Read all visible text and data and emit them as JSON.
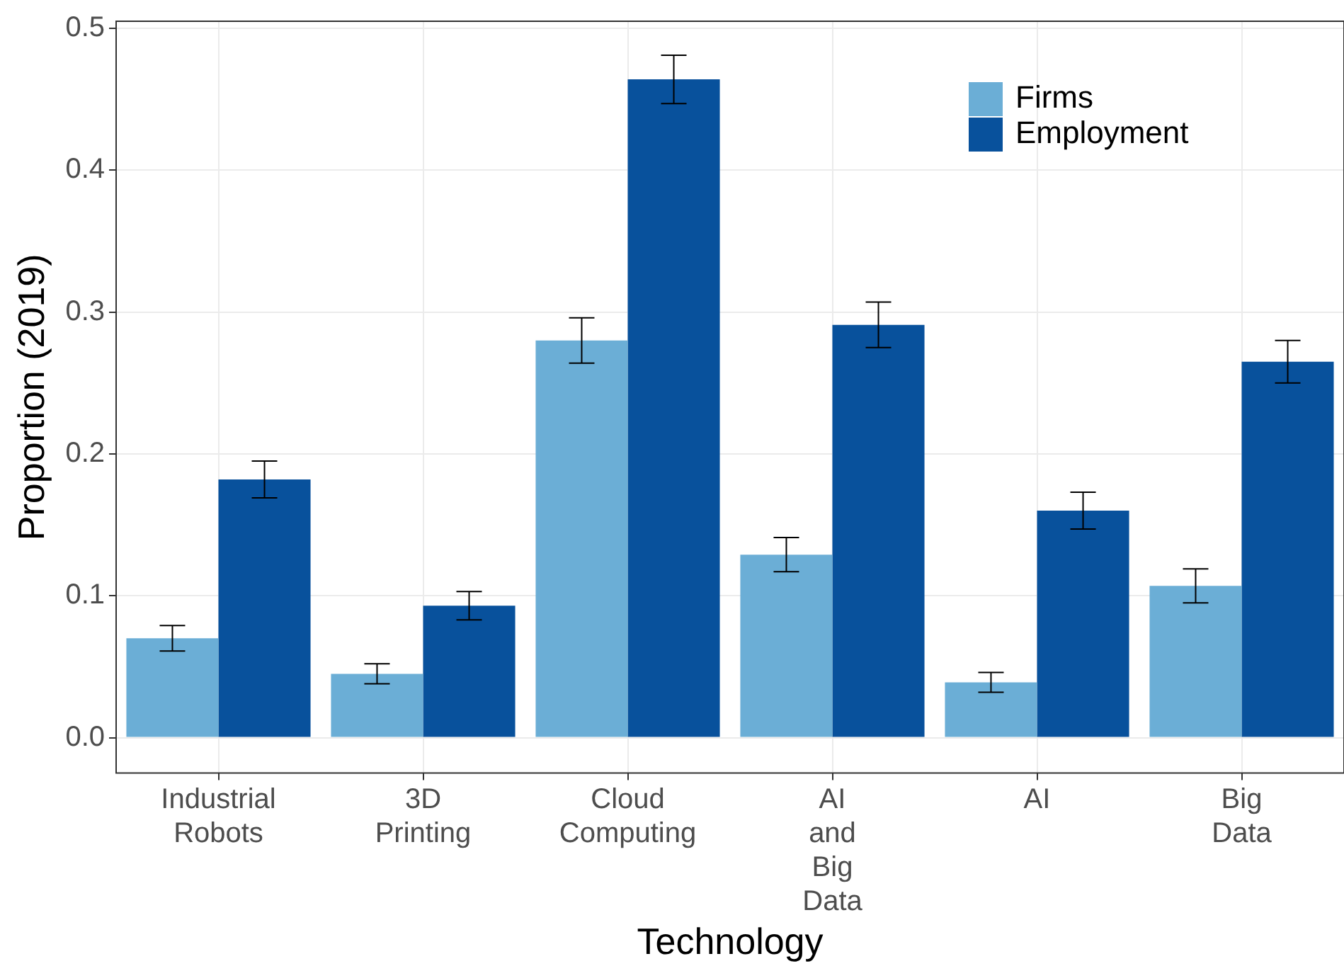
{
  "chart_data": {
    "type": "bar",
    "xlabel": "Technology",
    "ylabel": "Proportion (2019)",
    "categories": [
      "Industrial Robots",
      "3D Printing",
      "Cloud Computing",
      "AI and Big Data",
      "AI",
      "Big Data"
    ],
    "series": [
      {
        "name": "Firms",
        "color": "#6baed6",
        "values": [
          0.07,
          0.045,
          0.28,
          0.129,
          0.039,
          0.107
        ],
        "errors": [
          0.009,
          0.007,
          0.016,
          0.012,
          0.007,
          0.012
        ]
      },
      {
        "name": "Employment",
        "color": "#08519c",
        "values": [
          0.182,
          0.093,
          0.464,
          0.291,
          0.16,
          0.265
        ],
        "errors": [
          0.013,
          0.01,
          0.017,
          0.016,
          0.013,
          0.015
        ]
      }
    ],
    "ylim": [
      -0.025,
      0.505
    ],
    "yticks": [
      {
        "value": 0,
        "label": "0.0"
      },
      {
        "value": 0.1,
        "label": "0.1"
      },
      {
        "value": 0.2,
        "label": "0.2"
      },
      {
        "value": 0.3,
        "label": "0.3"
      },
      {
        "value": 0.4,
        "label": "0.4"
      },
      {
        "value": 0.5,
        "label": "0.5"
      }
    ],
    "grid": true,
    "legend": "top right"
  }
}
